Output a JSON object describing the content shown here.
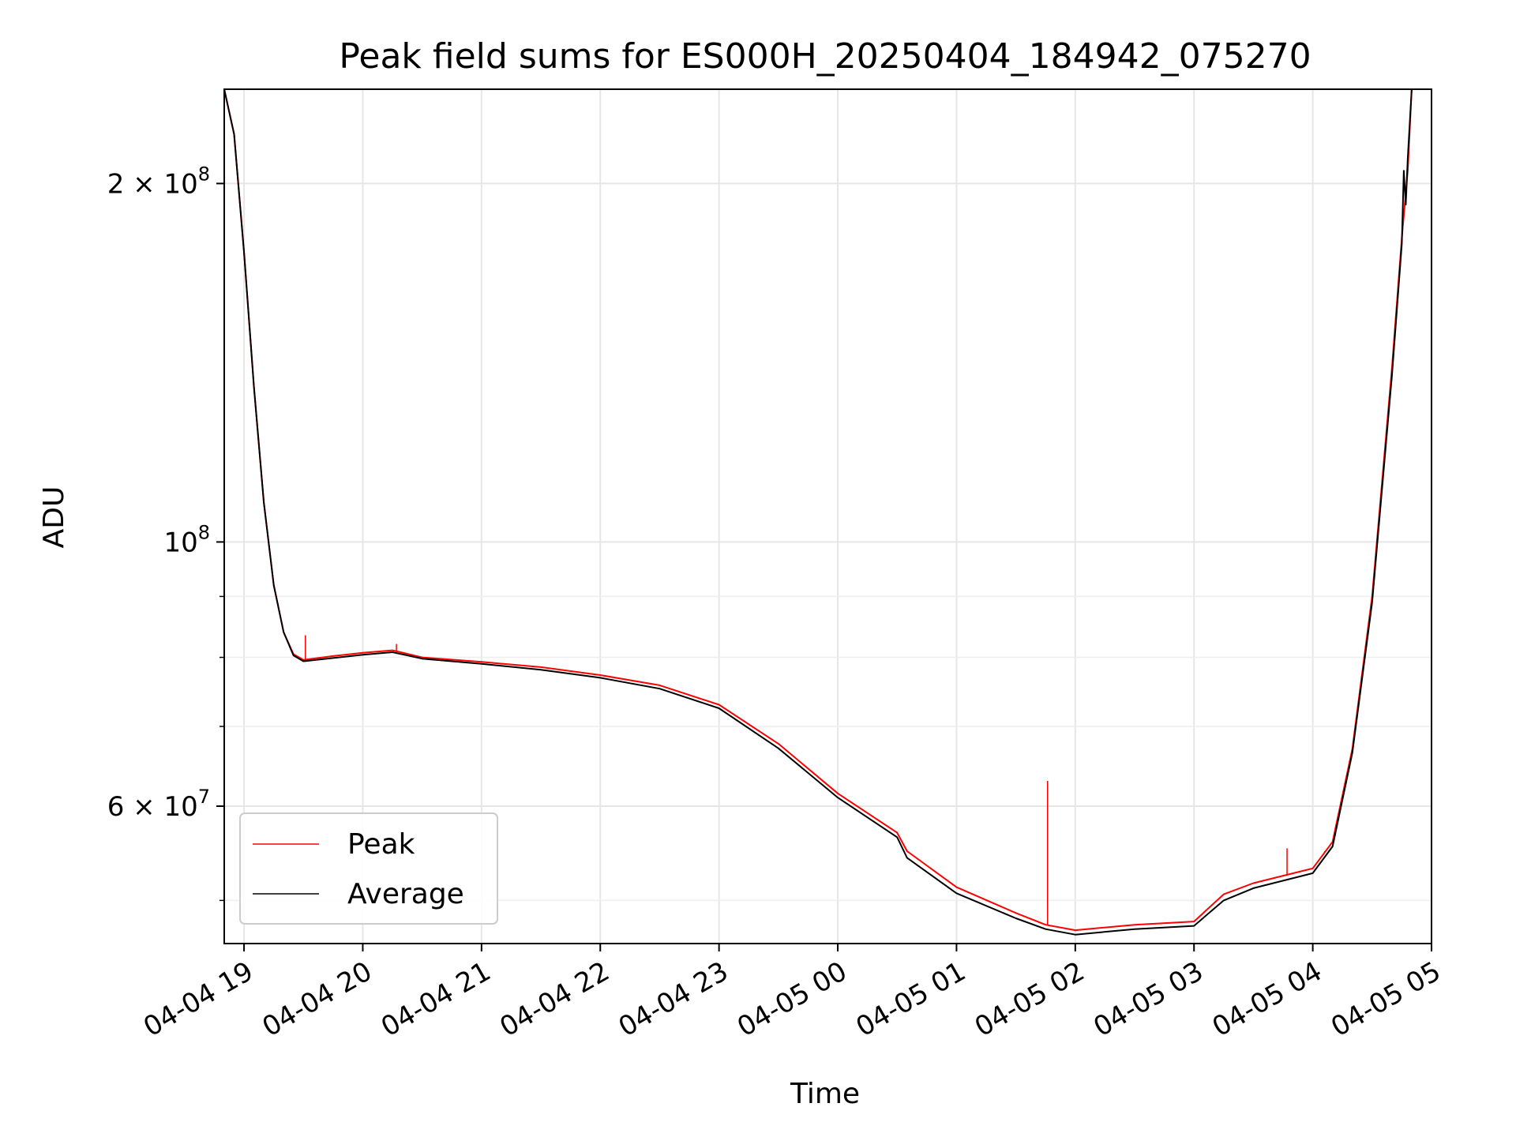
{
  "chart_data": {
    "type": "line",
    "title": "Peak field sums for ES000H_20250404_184942_075270",
    "xlabel": "Time",
    "ylabel": "ADU",
    "yscale": "log",
    "xlim": [
      "2025-04-04T18:50",
      "2025-04-05T05:00"
    ],
    "ylim": [
      46000000,
      240000000
    ],
    "grid": true,
    "legend_position": "lower-left",
    "x_ticks": [
      {
        "value": "2025-04-04T19:00",
        "label": "04-04 19"
      },
      {
        "value": "2025-04-04T20:00",
        "label": "04-04 20"
      },
      {
        "value": "2025-04-04T21:00",
        "label": "04-04 21"
      },
      {
        "value": "2025-04-04T22:00",
        "label": "04-04 22"
      },
      {
        "value": "2025-04-04T23:00",
        "label": "04-04 23"
      },
      {
        "value": "2025-04-05T00:00",
        "label": "04-05 00"
      },
      {
        "value": "2025-04-05T01:00",
        "label": "04-05 01"
      },
      {
        "value": "2025-04-05T02:00",
        "label": "04-05 02"
      },
      {
        "value": "2025-04-05T03:00",
        "label": "04-05 03"
      },
      {
        "value": "2025-04-05T04:00",
        "label": "04-05 04"
      },
      {
        "value": "2025-04-05T05:00",
        "label": "04-05 05"
      }
    ],
    "y_ticks": [
      {
        "value": 200000000,
        "mantissa": "2",
        "times": "×",
        "base": "10",
        "exp": "8"
      },
      {
        "value": 100000000,
        "mantissa": "",
        "times": "",
        "base": "10",
        "exp": "8"
      },
      {
        "value": 60000000,
        "mantissa": "6",
        "times": "×",
        "base": "10",
        "exp": "7"
      }
    ],
    "y_minor_ticks": [
      50000000,
      70000000,
      80000000,
      90000000
    ],
    "series": [
      {
        "name": "Peak",
        "color": "#ff0000",
        "points": [
          [
            "2025-04-04T18:50",
            240000000
          ],
          [
            "2025-04-04T18:55",
            220000000
          ],
          [
            "2025-04-04T19:00",
            175000000
          ],
          [
            "2025-04-04T19:05",
            135000000
          ],
          [
            "2025-04-04T19:10",
            108000000
          ],
          [
            "2025-04-04T19:15",
            92000000
          ],
          [
            "2025-04-04T19:20",
            84000000
          ],
          [
            "2025-04-04T19:25",
            80500000
          ],
          [
            "2025-04-04T19:30",
            79600000
          ],
          [
            "2025-04-04T19:45",
            80200000
          ],
          [
            "2025-04-04T20:00",
            80700000
          ],
          [
            "2025-04-04T20:15",
            81100000
          ],
          [
            "2025-04-04T20:30",
            80000000
          ],
          [
            "2025-04-04T21:00",
            79300000
          ],
          [
            "2025-04-04T21:30",
            78500000
          ],
          [
            "2025-04-04T22:00",
            77300000
          ],
          [
            "2025-04-04T22:30",
            75800000
          ],
          [
            "2025-04-04T23:00",
            73000000
          ],
          [
            "2025-04-04T23:30",
            67700000
          ],
          [
            "2025-04-05T00:00",
            61500000
          ],
          [
            "2025-04-05T00:30",
            57000000
          ],
          [
            "2025-04-05T00:35",
            55000000
          ],
          [
            "2025-04-05T01:00",
            51300000
          ],
          [
            "2025-04-05T01:30",
            48800000
          ],
          [
            "2025-04-05T01:45",
            47700000
          ],
          [
            "2025-04-05T02:00",
            47200000
          ],
          [
            "2025-04-05T02:30",
            47700000
          ],
          [
            "2025-04-05T03:00",
            48000000
          ],
          [
            "2025-04-05T03:15",
            50600000
          ],
          [
            "2025-04-05T03:30",
            51700000
          ],
          [
            "2025-04-05T04:00",
            53200000
          ],
          [
            "2025-04-05T04:10",
            56000000
          ],
          [
            "2025-04-05T04:20",
            67000000
          ],
          [
            "2025-04-05T04:30",
            90000000
          ],
          [
            "2025-04-05T04:40",
            140000000
          ],
          [
            "2025-04-05T04:45",
            180000000
          ],
          [
            "2025-04-05T04:48",
            205000000
          ],
          [
            "2025-04-05T04:50",
            240000000
          ]
        ],
        "spikes": [
          [
            "2025-04-04T19:31",
            83500000
          ],
          [
            "2025-04-04T20:17",
            82100000
          ],
          [
            "2025-04-05T01:46",
            63000000
          ],
          [
            "2025-04-05T03:47",
            55300000
          ],
          [
            "2025-04-05T04:06",
            55000000
          ]
        ]
      },
      {
        "name": "Average",
        "color": "#000000",
        "points": [
          [
            "2025-04-04T18:50",
            240000000
          ],
          [
            "2025-04-04T18:55",
            220000000
          ],
          [
            "2025-04-04T19:00",
            175000000
          ],
          [
            "2025-04-04T19:05",
            135000000
          ],
          [
            "2025-04-04T19:10",
            108000000
          ],
          [
            "2025-04-04T19:15",
            92000000
          ],
          [
            "2025-04-04T19:20",
            84000000
          ],
          [
            "2025-04-04T19:25",
            80300000
          ],
          [
            "2025-04-04T19:30",
            79400000
          ],
          [
            "2025-04-04T19:45",
            79900000
          ],
          [
            "2025-04-04T20:00",
            80400000
          ],
          [
            "2025-04-04T20:15",
            80800000
          ],
          [
            "2025-04-04T20:30",
            79800000
          ],
          [
            "2025-04-04T21:00",
            79000000
          ],
          [
            "2025-04-04T21:30",
            78100000
          ],
          [
            "2025-04-04T22:00",
            76900000
          ],
          [
            "2025-04-04T22:30",
            75300000
          ],
          [
            "2025-04-04T23:00",
            72500000
          ],
          [
            "2025-04-04T23:30",
            67100000
          ],
          [
            "2025-04-05T00:00",
            61000000
          ],
          [
            "2025-04-05T00:30",
            56500000
          ],
          [
            "2025-04-05T00:35",
            54300000
          ],
          [
            "2025-04-05T01:00",
            50700000
          ],
          [
            "2025-04-05T01:30",
            48300000
          ],
          [
            "2025-04-05T01:45",
            47300000
          ],
          [
            "2025-04-05T02:00",
            46800000
          ],
          [
            "2025-04-05T02:30",
            47300000
          ],
          [
            "2025-04-05T03:00",
            47600000
          ],
          [
            "2025-04-05T03:15",
            50000000
          ],
          [
            "2025-04-05T03:30",
            51200000
          ],
          [
            "2025-04-05T04:00",
            52700000
          ],
          [
            "2025-04-05T04:10",
            55500000
          ],
          [
            "2025-04-05T04:20",
            66500000
          ],
          [
            "2025-04-05T04:30",
            89000000
          ],
          [
            "2025-04-05T04:40",
            138000000
          ],
          [
            "2025-04-05T04:45",
            178000000
          ],
          [
            "2025-04-05T04:46",
            205000000
          ],
          [
            "2025-04-05T04:47",
            192000000
          ],
          [
            "2025-04-05T04:48",
            210000000
          ],
          [
            "2025-04-05T04:50",
            240000000
          ]
        ]
      }
    ]
  }
}
